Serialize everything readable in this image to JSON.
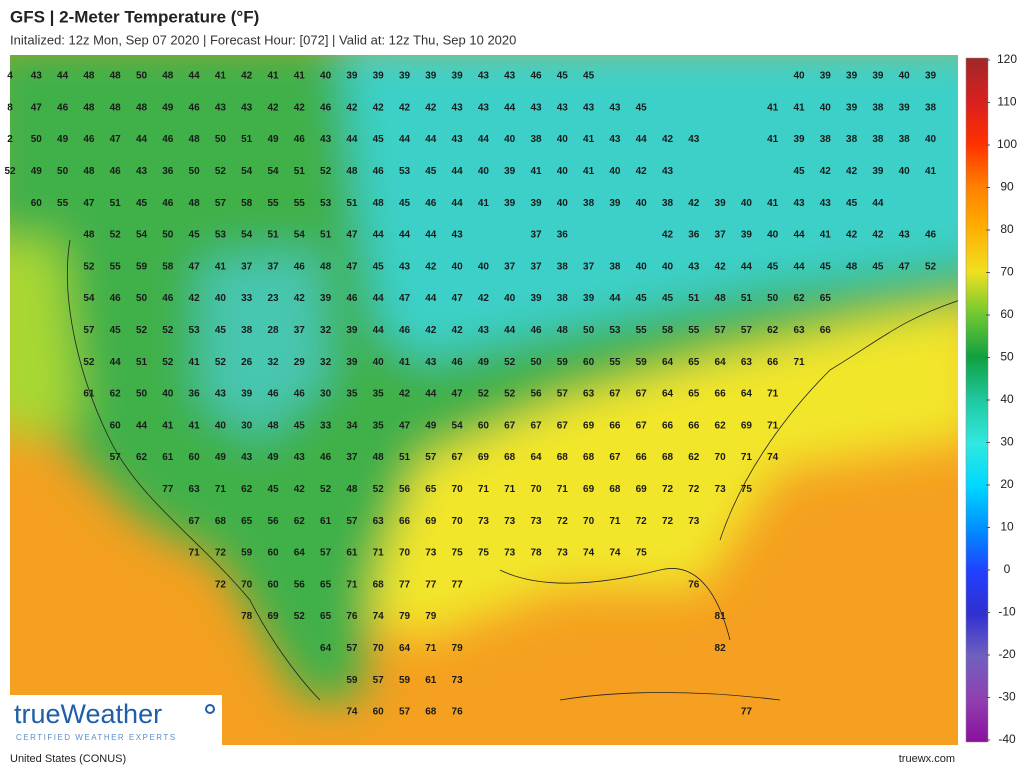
{
  "header": {
    "title": "GFS | 2-Meter Temperature (°F)",
    "subtitle": "Initalized: 12z Mon, Sep 07 2020 | Forecast Hour: [072] | Valid at: 12z Thu, Sep 10 2020"
  },
  "map": {
    "temperatures": [
      [
        4,
        43,
        44,
        48,
        48,
        50,
        48,
        44,
        41,
        42,
        41,
        41,
        40,
        39,
        39,
        39,
        39,
        39,
        43,
        43,
        46,
        45,
        45,
        null,
        null,
        null,
        null,
        null,
        null,
        null,
        40,
        39,
        39,
        39,
        40,
        39
      ],
      [
        8,
        47,
        46,
        48,
        48,
        48,
        49,
        46,
        43,
        43,
        42,
        42,
        46,
        42,
        42,
        42,
        42,
        43,
        43,
        44,
        43,
        43,
        43,
        43,
        45,
        null,
        null,
        null,
        null,
        41,
        41,
        40,
        39,
        38,
        39,
        38
      ],
      [
        2,
        50,
        49,
        46,
        47,
        44,
        46,
        48,
        50,
        51,
        49,
        46,
        43,
        44,
        45,
        44,
        44,
        43,
        44,
        40,
        38,
        40,
        41,
        43,
        44,
        42,
        43,
        null,
        null,
        41,
        39,
        38,
        38,
        38,
        38,
        40
      ],
      [
        52,
        49,
        50,
        48,
        46,
        43,
        36,
        50,
        52,
        54,
        54,
        51,
        52,
        48,
        46,
        53,
        45,
        44,
        40,
        39,
        41,
        40,
        41,
        40,
        42,
        43,
        null,
        null,
        null,
        null,
        45,
        42,
        42,
        39,
        40,
        41
      ],
      [
        null,
        60,
        55,
        47,
        51,
        45,
        46,
        48,
        57,
        58,
        55,
        55,
        53,
        51,
        48,
        45,
        46,
        44,
        41,
        39,
        39,
        40,
        38,
        39,
        40,
        38,
        42,
        39,
        40,
        41,
        43,
        43,
        45,
        44
      ],
      [
        null,
        null,
        null,
        48,
        52,
        54,
        50,
        45,
        53,
        54,
        51,
        54,
        51,
        47,
        44,
        44,
        44,
        43,
        null,
        null,
        37,
        36,
        null,
        null,
        null,
        42,
        36,
        37,
        39,
        40,
        44,
        41,
        42,
        42,
        43,
        46
      ],
      [
        null,
        null,
        null,
        52,
        55,
        59,
        58,
        47,
        41,
        37,
        37,
        46,
        48,
        47,
        45,
        43,
        42,
        40,
        40,
        37,
        37,
        38,
        37,
        38,
        40,
        40,
        43,
        42,
        44,
        45,
        44,
        45,
        48,
        45,
        47,
        52
      ],
      [
        null,
        null,
        null,
        54,
        46,
        50,
        46,
        42,
        40,
        33,
        23,
        42,
        39,
        46,
        44,
        47,
        44,
        47,
        42,
        40,
        39,
        38,
        39,
        44,
        45,
        45,
        51,
        48,
        51,
        50,
        62,
        65
      ],
      [
        null,
        null,
        null,
        57,
        45,
        52,
        52,
        53,
        45,
        38,
        28,
        37,
        32,
        39,
        44,
        46,
        42,
        42,
        43,
        44,
        46,
        48,
        50,
        53,
        55,
        58,
        55,
        57,
        57,
        62,
        63,
        66
      ],
      [
        null,
        null,
        null,
        52,
        44,
        51,
        52,
        41,
        52,
        26,
        32,
        29,
        32,
        39,
        40,
        41,
        43,
        46,
        49,
        52,
        50,
        59,
        60,
        55,
        59,
        64,
        65,
        64,
        63,
        66,
        71
      ],
      [
        null,
        null,
        null,
        61,
        62,
        50,
        40,
        36,
        43,
        39,
        46,
        46,
        30,
        35,
        35,
        42,
        44,
        47,
        52,
        52,
        56,
        57,
        63,
        67,
        67,
        64,
        65,
        66,
        64,
        71
      ],
      [
        null,
        null,
        null,
        null,
        60,
        44,
        41,
        41,
        40,
        30,
        48,
        45,
        33,
        34,
        35,
        47,
        49,
        54,
        60,
        67,
        67,
        67,
        69,
        66,
        67,
        66,
        66,
        62,
        69,
        71
      ],
      [
        null,
        null,
        null,
        null,
        57,
        62,
        61,
        60,
        49,
        43,
        49,
        43,
        46,
        37,
        48,
        51,
        57,
        67,
        69,
        68,
        64,
        68,
        68,
        67,
        66,
        68,
        62,
        70,
        71,
        74
      ],
      [
        null,
        null,
        null,
        null,
        null,
        null,
        77,
        63,
        71,
        62,
        45,
        42,
        52,
        48,
        52,
        56,
        65,
        70,
        71,
        71,
        70,
        71,
        69,
        68,
        69,
        72,
        72,
        73,
        75
      ],
      [
        null,
        null,
        null,
        null,
        null,
        null,
        null,
        67,
        68,
        65,
        56,
        62,
        61,
        57,
        63,
        66,
        69,
        70,
        73,
        73,
        73,
        72,
        70,
        71,
        72,
        72,
        73
      ],
      [
        null,
        null,
        null,
        null,
        null,
        null,
        null,
        71,
        72,
        59,
        60,
        64,
        57,
        61,
        71,
        70,
        73,
        75,
        75,
        73,
        78,
        73,
        74,
        74,
        75
      ],
      [
        null,
        null,
        null,
        null,
        null,
        null,
        null,
        null,
        72,
        70,
        60,
        56,
        65,
        71,
        68,
        77,
        77,
        77,
        null,
        null,
        null,
        null,
        null,
        null,
        null,
        null,
        76
      ],
      [
        null,
        null,
        null,
        null,
        null,
        null,
        null,
        null,
        null,
        78,
        69,
        52,
        65,
        76,
        74,
        79,
        79,
        null,
        null,
        null,
        null,
        null,
        null,
        null,
        null,
        null,
        null,
        81
      ],
      [
        null,
        null,
        null,
        null,
        null,
        null,
        null,
        null,
        null,
        null,
        null,
        null,
        64,
        57,
        70,
        64,
        71,
        79,
        null,
        null,
        null,
        null,
        null,
        null,
        null,
        null,
        null,
        82
      ],
      [
        null,
        null,
        null,
        null,
        null,
        null,
        null,
        null,
        null,
        null,
        null,
        null,
        null,
        59,
        57,
        59,
        61,
        73
      ],
      [
        null,
        null,
        null,
        null,
        null,
        null,
        null,
        null,
        null,
        null,
        null,
        null,
        null,
        74,
        60,
        57,
        68,
        76,
        null,
        null,
        null,
        null,
        null,
        null,
        null,
        null,
        null,
        null,
        77
      ]
    ]
  },
  "colorbar": {
    "ticks": [
      120,
      110,
      100,
      90,
      80,
      70,
      60,
      50,
      40,
      30,
      20,
      10,
      0,
      -10,
      -20,
      -30,
      -40
    ],
    "colors": [
      "#a02828",
      "#d82020",
      "#ff3000",
      "#ff8000",
      "#ffb000",
      "#f0e020",
      "#70c830",
      "#10a040",
      "#20c8a0",
      "#30e8e0",
      "#00d8ff",
      "#0090ff",
      "#2040ff",
      "#3030d0",
      "#7060c0",
      "#9040b0",
      "#8a109e"
    ]
  },
  "logo": {
    "name": "trueWeather",
    "tagline": "CERTIFIED WEATHER EXPERTS"
  },
  "footer": {
    "region": "United States (CONUS)",
    "site": "truewx.com"
  }
}
